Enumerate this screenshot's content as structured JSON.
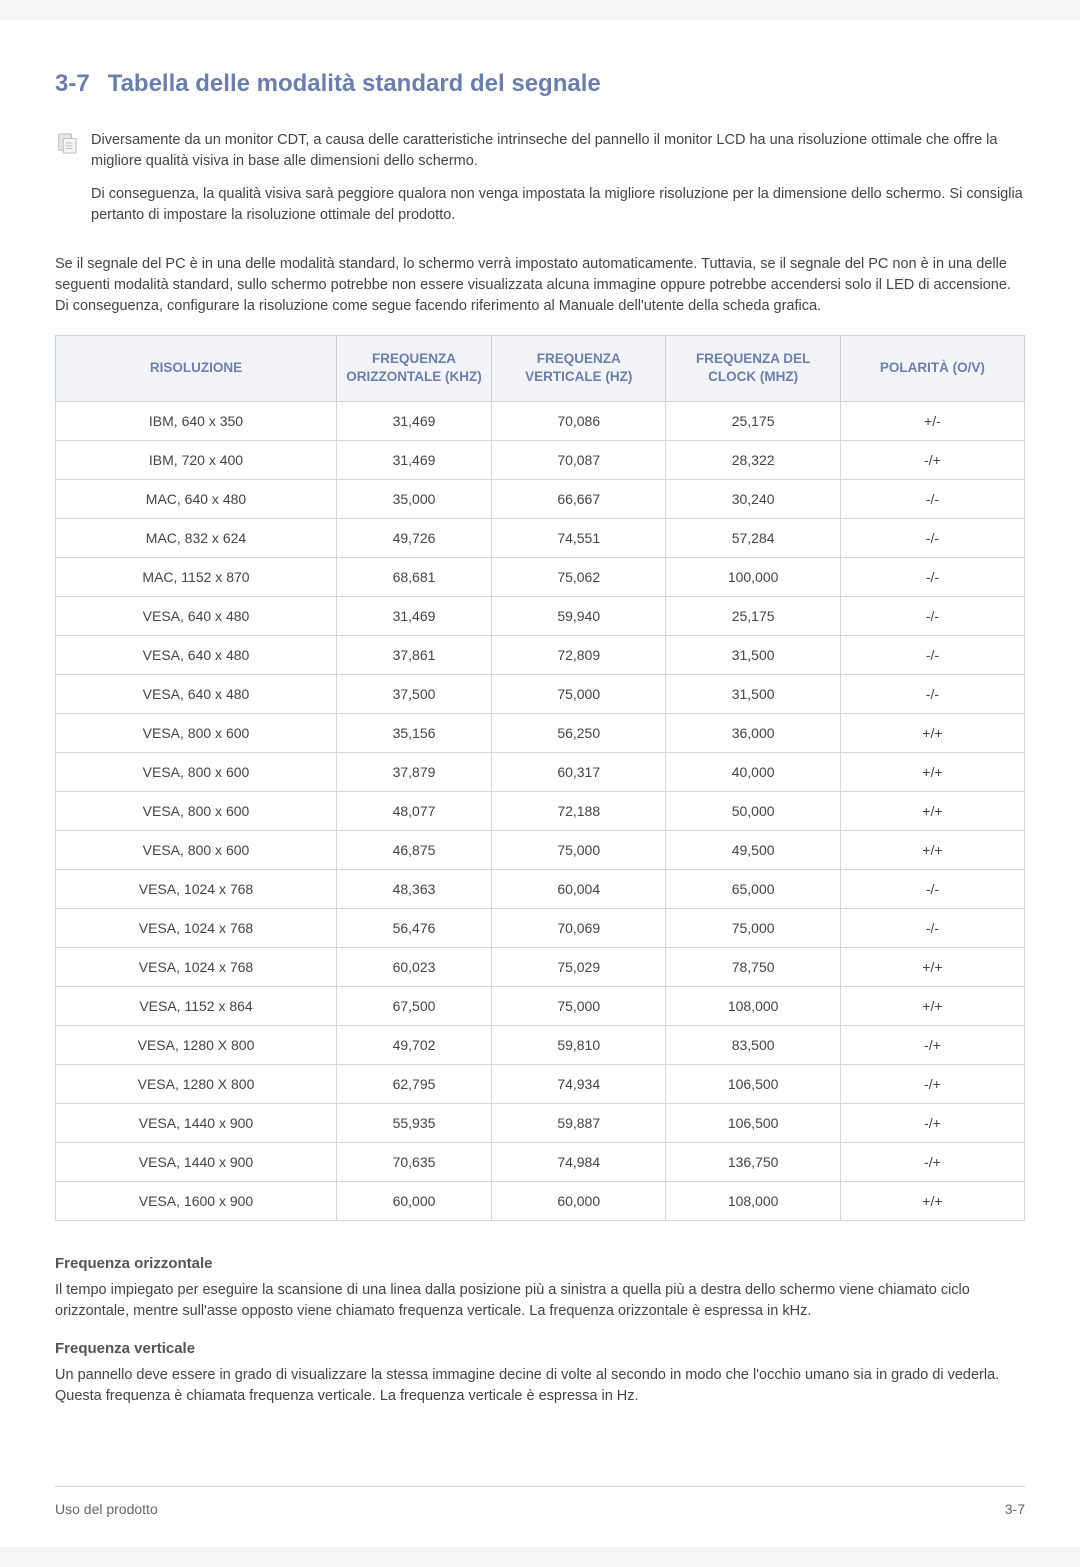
{
  "section": {
    "number": "3-7",
    "title": "Tabella delle modalità standard del segnale"
  },
  "note": {
    "p1": "Diversamente da un monitor CDT, a causa delle caratteristiche intrinseche del pannello il monitor LCD ha una risoluzione ottimale che offre la migliore qualità visiva in base alle dimensioni dello schermo.",
    "p2": "Di conseguenza, la qualità visiva sarà peggiore qualora non venga impostata la migliore risoluzione per la dimensione dello schermo. Si consiglia pertanto di impostare la risoluzione ottimale del prodotto."
  },
  "intro": "Se il segnale del PC è in una delle modalità standard, lo schermo verrà impostato automaticamente. Tuttavia, se il segnale del PC non è in una delle seguenti modalità standard, sullo schermo potrebbe non essere visualizzata alcuna immagine oppure potrebbe accendersi solo il LED di accensione. Di conseguenza, configurare la risoluzione come segue facendo riferimento al Manuale dell'utente della scheda grafica.",
  "table": {
    "headers": {
      "res": "RISOLUZIONE",
      "h": "FREQUENZA ORIZZONTALE (KHZ)",
      "v": "FREQUENZA VERTICALE (HZ)",
      "c": "FREQUENZA DEL CLOCK (MHZ)",
      "p": "POLARITÀ (O/V)"
    },
    "rows": [
      {
        "res": "IBM, 640 x 350",
        "h": "31,469",
        "v": "70,086",
        "c": "25,175",
        "p": "+/-"
      },
      {
        "res": "IBM, 720 x 400",
        "h": "31,469",
        "v": "70,087",
        "c": "28,322",
        "p": "-/+"
      },
      {
        "res": "MAC, 640 x 480",
        "h": "35,000",
        "v": "66,667",
        "c": "30,240",
        "p": "-/-"
      },
      {
        "res": "MAC, 832 x 624",
        "h": "49,726",
        "v": "74,551",
        "c": "57,284",
        "p": "-/-"
      },
      {
        "res": "MAC, 1152 x 870",
        "h": "68,681",
        "v": "75,062",
        "c": "100,000",
        "p": "-/-"
      },
      {
        "res": "VESA, 640 x 480",
        "h": "31,469",
        "v": "59,940",
        "c": "25,175",
        "p": "-/-"
      },
      {
        "res": "VESA, 640 x 480",
        "h": "37,861",
        "v": "72,809",
        "c": "31,500",
        "p": "-/-"
      },
      {
        "res": "VESA, 640 x 480",
        "h": "37,500",
        "v": "75,000",
        "c": "31,500",
        "p": "-/-"
      },
      {
        "res": "VESA, 800 x 600",
        "h": "35,156",
        "v": "56,250",
        "c": "36,000",
        "p": "+/+"
      },
      {
        "res": "VESA, 800 x 600",
        "h": "37,879",
        "v": "60,317",
        "c": "40,000",
        "p": "+/+"
      },
      {
        "res": "VESA, 800 x 600",
        "h": "48,077",
        "v": "72,188",
        "c": "50,000",
        "p": "+/+"
      },
      {
        "res": "VESA, 800 x 600",
        "h": "46,875",
        "v": "75,000",
        "c": "49,500",
        "p": "+/+"
      },
      {
        "res": "VESA, 1024 x 768",
        "h": "48,363",
        "v": "60,004",
        "c": "65,000",
        "p": "-/-"
      },
      {
        "res": "VESA, 1024 x 768",
        "h": "56,476",
        "v": "70,069",
        "c": "75,000",
        "p": "-/-"
      },
      {
        "res": "VESA, 1024 x 768",
        "h": "60,023",
        "v": "75,029",
        "c": "78,750",
        "p": "+/+"
      },
      {
        "res": "VESA, 1152 x 864",
        "h": "67,500",
        "v": "75,000",
        "c": "108,000",
        "p": "+/+"
      },
      {
        "res": "VESA, 1280 X 800",
        "h": "49,702",
        "v": "59,810",
        "c": "83,500",
        "p": "-/+"
      },
      {
        "res": "VESA, 1280 X 800",
        "h": "62,795",
        "v": "74,934",
        "c": "106,500",
        "p": "-/+"
      },
      {
        "res": "VESA, 1440 x 900",
        "h": "55,935",
        "v": "59,887",
        "c": "106,500",
        "p": "-/+"
      },
      {
        "res": "VESA, 1440 x 900",
        "h": "70,635",
        "v": "74,984",
        "c": "136,750",
        "p": "-/+"
      },
      {
        "res": "VESA, 1600 x 900",
        "h": "60,000",
        "v": "60,000",
        "c": "108,000",
        "p": "+/+"
      }
    ]
  },
  "defs": {
    "h_title": "Frequenza orizzontale",
    "h_body": "Il tempo impiegato per eseguire la scansione di una linea dalla posizione più a sinistra a quella più a destra dello schermo viene chiamato ciclo orizzontale, mentre sull'asse opposto viene chiamato frequenza verticale. La frequenza orizzontale è espressa in kHz.",
    "v_title": "Frequenza verticale",
    "v_body": "Un pannello deve essere in grado di visualizzare la stessa immagine decine di volte al secondo in modo che l'occhio umano sia in grado di vederla. Questa frequenza è chiamata frequenza verticale. La frequenza verticale è espressa in Hz."
  },
  "footer": {
    "left": "Uso del prodotto",
    "right": "3-7"
  }
}
